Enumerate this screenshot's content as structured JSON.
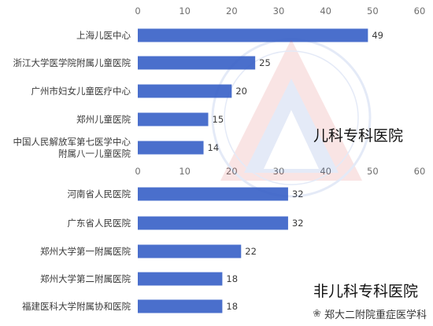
{
  "chart_data": [
    {
      "type": "bar",
      "orientation": "horizontal",
      "title": "儿科专科医院",
      "categories": [
        "上海儿医中心",
        "浙江大学医学院附属儿童医院",
        "广州市妇女儿童医疗中心",
        "郑州儿童医院",
        "中国人民解放军第七医学中心\n附属八一儿童医院"
      ],
      "values": [
        49,
        25,
        20,
        15,
        14
      ],
      "xlim": [
        0,
        60
      ],
      "xticks": [
        0,
        10,
        20,
        30,
        40,
        50,
        60
      ],
      "color": "#4a6fcc",
      "gridlines": false,
      "data_labels": true
    },
    {
      "type": "bar",
      "orientation": "horizontal",
      "title": "非儿科专科医院",
      "categories": [
        "河南省人民医院",
        "广东省人民医院",
        "郑州大学第一附属医院",
        "郑州大学第二附属医院",
        "福建医科大学附属协和医院"
      ],
      "values": [
        32,
        32,
        22,
        18,
        18
      ],
      "xlim": [
        0,
        60
      ],
      "xticks": [
        0,
        10,
        20,
        30,
        40,
        50,
        60
      ],
      "color": "#4a6fcc",
      "gridlines": false,
      "data_labels": true
    }
  ],
  "watermark": {
    "credit_text": "郑大二附院重症医学科",
    "icon": "wechat-icon"
  }
}
